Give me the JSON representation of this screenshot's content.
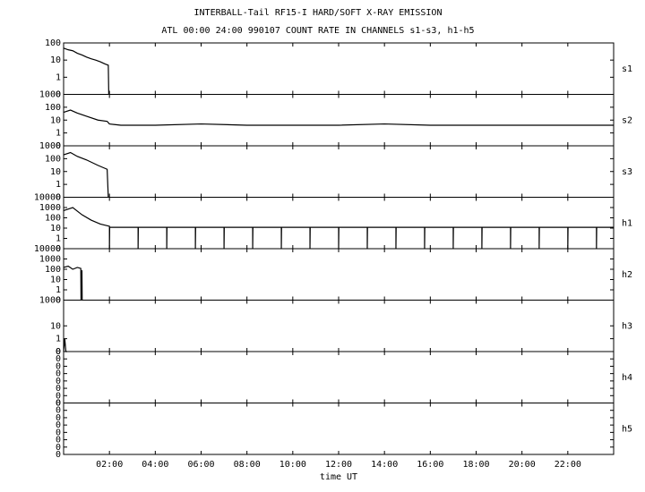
{
  "header": {
    "title": "INTERBALL-Tail RF15-I HARD/SOFT X-RAY EMISSION",
    "subtitle": "ATL 00:00 24:00 990107  COUNT RATE IN CHANNELS s1-s3, h1-h5"
  },
  "x_axis": {
    "label": "time UT",
    "xlim": [
      0,
      24
    ],
    "xticks": [
      {
        "value": 2,
        "label": "02:00"
      },
      {
        "value": 4,
        "label": "04:00"
      },
      {
        "value": 6,
        "label": "06:00"
      },
      {
        "value": 8,
        "label": "08:00"
      },
      {
        "value": 10,
        "label": "10:00"
      },
      {
        "value": 12,
        "label": "12:00"
      },
      {
        "value": 14,
        "label": "14:00"
      },
      {
        "value": 16,
        "label": "16:00"
      },
      {
        "value": 18,
        "label": "18:00"
      },
      {
        "value": 20,
        "label": "20:00"
      },
      {
        "value": 22,
        "label": "22:00"
      }
    ]
  },
  "chart_data": [
    {
      "type": "line",
      "name": "s1",
      "color": "#000000",
      "yscale": "log",
      "ylim": [
        0,
        100
      ],
      "yticks": [
        0,
        1,
        10,
        100
      ],
      "x": [
        0,
        0.2,
        0.4,
        0.6,
        0.8,
        1.0,
        1.2,
        1.4,
        1.6,
        1.8,
        1.95,
        1.97
      ],
      "values": [
        50,
        40,
        35,
        25,
        20,
        15,
        12,
        10,
        8,
        6,
        5,
        0
      ]
    },
    {
      "type": "line",
      "name": "s2",
      "color": "#000000",
      "yscale": "log",
      "ylim": [
        0,
        1000
      ],
      "yticks": [
        0,
        1,
        10,
        100,
        1000
      ],
      "x": [
        0,
        0.3,
        0.6,
        1,
        1.5,
        1.9,
        2,
        2.5,
        4,
        6,
        8,
        10,
        12,
        14,
        16,
        18,
        20,
        22,
        24
      ],
      "values": [
        40,
        60,
        35,
        20,
        10,
        8,
        5,
        4,
        4,
        5,
        4,
        4,
        4,
        5,
        4,
        4,
        4,
        4,
        4
      ]
    },
    {
      "type": "line",
      "name": "s3",
      "color": "#000000",
      "yscale": "log",
      "ylim": [
        0,
        1000
      ],
      "yticks": [
        0,
        1,
        10,
        100,
        1000
      ],
      "x": [
        0,
        0.3,
        0.6,
        1,
        1.5,
        1.9,
        1.95
      ],
      "values": [
        200,
        300,
        150,
        80,
        30,
        15,
        0
      ]
    },
    {
      "type": "line",
      "name": "h1",
      "color": "#000000",
      "yscale": "log",
      "ylim": [
        0,
        10000
      ],
      "yticks": [
        0,
        1,
        10,
        100,
        1000,
        10000
      ],
      "x": [
        0,
        0.4,
        0.8,
        1.2,
        1.6,
        2,
        2,
        2.01,
        3.25,
        3.25,
        3.26,
        4.5,
        4.5,
        4.51,
        5.75,
        5.75,
        5.76,
        7,
        7,
        7.01,
        8.25,
        8.25,
        8.26,
        9.5,
        9.5,
        9.51,
        10.75,
        10.75,
        10.76,
        12,
        12,
        12.01,
        13.25,
        13.25,
        13.26,
        14.5,
        14.5,
        14.51,
        15.75,
        15.75,
        15.76,
        17,
        17,
        17.01,
        18.25,
        18.25,
        18.26,
        19.5,
        19.5,
        19.51,
        20.75,
        20.75,
        20.76,
        22,
        22,
        22.01,
        23.25,
        23.25,
        23.26,
        24
      ],
      "values": [
        500,
        1000,
        200,
        60,
        25,
        15,
        0,
        12,
        12,
        0,
        12,
        12,
        0,
        12,
        12,
        0,
        12,
        12,
        0,
        12,
        12,
        0,
        12,
        12,
        0,
        12,
        12,
        0,
        12,
        12,
        0,
        12,
        12,
        0,
        12,
        12,
        0,
        12,
        12,
        0,
        12,
        12,
        0,
        12,
        12,
        0,
        12,
        12,
        0,
        12,
        12,
        0,
        12,
        12,
        0,
        12,
        12,
        0,
        12,
        12
      ]
    },
    {
      "type": "line",
      "name": "h2",
      "color": "#000000",
      "yscale": "log",
      "ylim": [
        0,
        10000
      ],
      "yticks": [
        0,
        1,
        10,
        100,
        1000,
        10000
      ],
      "x": [
        0,
        0.2,
        0.4,
        0.6,
        0.75,
        0.76,
        0.8,
        0.81
      ],
      "values": [
        150,
        200,
        100,
        150,
        120,
        0,
        80,
        0
      ]
    },
    {
      "type": "line",
      "name": "h3",
      "color": "#000000",
      "yscale": "log",
      "ylim": [
        0,
        1000
      ],
      "yticks": [
        0,
        1,
        10,
        1000
      ],
      "x": [
        0,
        0.05,
        0.1,
        0.15
      ],
      "values": [
        0,
        1,
        0,
        0
      ]
    },
    {
      "type": "line",
      "name": "h4",
      "color": "#000000",
      "yscale": "linear",
      "ylim": [
        0,
        0.35
      ],
      "yticks": [
        {
          "value": 0,
          "label": "0"
        },
        {
          "value": 0.05,
          "label": "0"
        },
        {
          "value": 0.1,
          "label": "0"
        },
        {
          "value": 0.15,
          "label": "0"
        },
        {
          "value": 0.2,
          "label": "0"
        },
        {
          "value": 0.25,
          "label": "0"
        },
        {
          "value": 0.3,
          "label": "0"
        },
        {
          "value": 0.35,
          "label": "0"
        }
      ],
      "x": [],
      "values": []
    },
    {
      "type": "line",
      "name": "h5",
      "color": "#000000",
      "yscale": "linear",
      "ylim": [
        0,
        0.35
      ],
      "yticks": [
        {
          "value": 0,
          "label": "0"
        },
        {
          "value": 0.05,
          "label": "0"
        },
        {
          "value": 0.1,
          "label": "0"
        },
        {
          "value": 0.15,
          "label": "0"
        },
        {
          "value": 0.2,
          "label": "0"
        },
        {
          "value": 0.25,
          "label": "0"
        },
        {
          "value": 0.3,
          "label": "0"
        },
        {
          "value": 0.35,
          "label": "0"
        }
      ],
      "x": [],
      "values": []
    }
  ]
}
